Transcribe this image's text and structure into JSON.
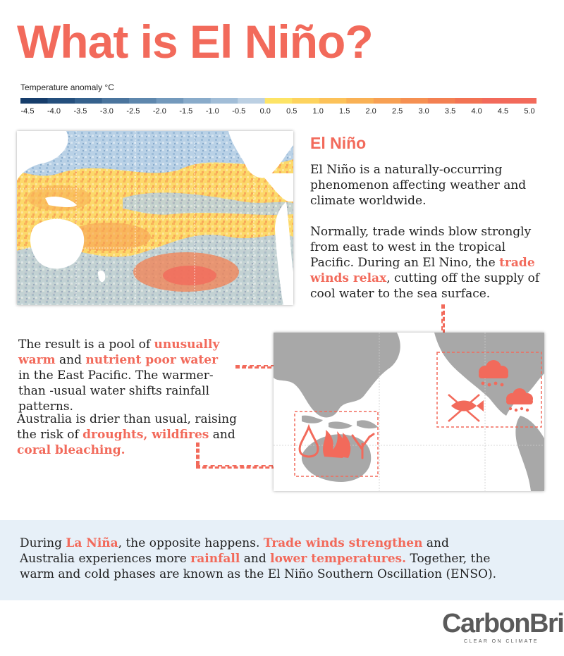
{
  "title": "What is El Niño?",
  "legend": {
    "title": "Temperature anomaly °C",
    "ticks": [
      "-4.5",
      "-4.0",
      "-3.5",
      "-3.0",
      "-2.5",
      "-2.0",
      "-1.5",
      "-1.0",
      "-0.5",
      "0.0",
      "0.5",
      "1.0",
      "1.5",
      "2.0",
      "2.5",
      "3.0",
      "3.5",
      "4.0",
      "4.5",
      "5.0"
    ],
    "colors": [
      "#163d6b",
      "#244f7d",
      "#35618d",
      "#4a749d",
      "#5e87ad",
      "#7399bc",
      "#89abca",
      "#a1bdd7",
      "#bcd0e3",
      "#fde466",
      "#fdd35e",
      "#fcc259",
      "#f9b155",
      "#f7a053",
      "#f59052",
      "#f38052",
      "#f27353",
      "#f26a5b",
      "#f26a5b"
    ]
  },
  "section": {
    "heading": "El Niño",
    "intro": "El Niño is a naturally-occurring phenomenon affecting weather and climate worldwide.",
    "trade": {
      "before": "Normally, trade winds blow strongly from east to west in the tropical Pacific. During an El Nino, the ",
      "highlight": "trade winds relax",
      "after": ", cutting off the supply of cool water to the sea surface."
    }
  },
  "result": {
    "p1_a": "The result is a pool of ",
    "p1_h1": "unusually warm",
    "p1_b": " and ",
    "p1_h2": "nutrient poor water",
    "p1_c": " in the East Pacific. The warmer-than -usual water shifts rainfall patterns.",
    "p2_a": "Australia is drier than usual, raising the risk of ",
    "p2_h1": "droughts, wildfires",
    "p2_b": " and ",
    "p2_h2": "coral bleaching."
  },
  "lanina": {
    "a": "During ",
    "h1": "La Niña",
    "b": ", the opposite happens. ",
    "h2": "Trade winds strengthen",
    "c": " and Australia experiences more ",
    "h3": "rainfall",
    "d": " and ",
    "h4": "lower temperatures.",
    "e": " Together, the warm and cold phases are known as the El Niño Southern Oscillation (ENSO)."
  },
  "logo": {
    "name": "CarbonBrief",
    "tagline": "CLEAR ON CLIMATE"
  },
  "colors": {
    "accent": "#f26a5b",
    "land": "#a8a8a8",
    "band": "#e7f0f8"
  },
  "icons": [
    "raincloud-icon",
    "dead-fish-icon",
    "drought-drop-icon",
    "wildfire-icon",
    "coral-icon"
  ]
}
